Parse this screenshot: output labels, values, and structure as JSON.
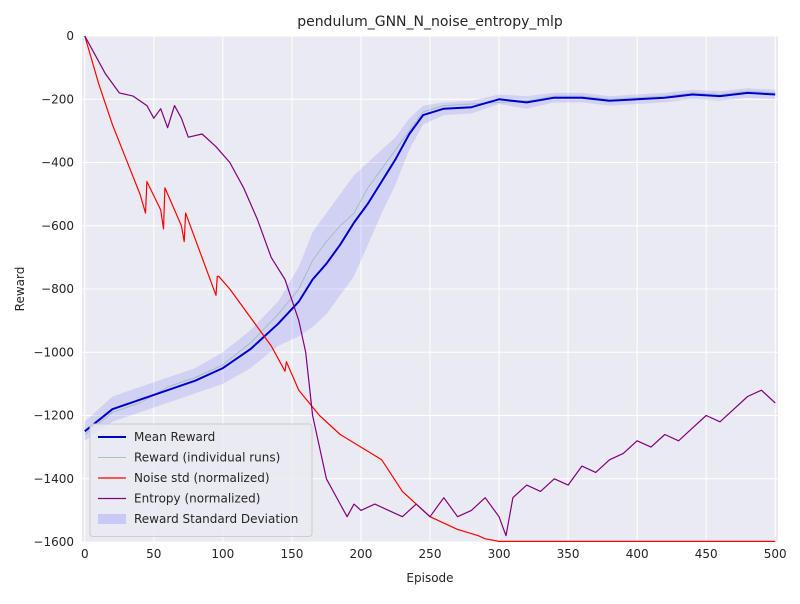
{
  "chart_data": {
    "type": "line",
    "title": "pendulum_GNN_N_noise_entropy_mlp",
    "xlabel": "Episode",
    "ylabel": "Reward",
    "xlim": [
      -2,
      502
    ],
    "ylim": [
      -1600,
      0
    ],
    "xticks": [
      0,
      50,
      100,
      150,
      200,
      250,
      300,
      350,
      400,
      450,
      500
    ],
    "yticks": [
      0,
      -200,
      -400,
      -600,
      -800,
      -1000,
      -1200,
      -1400,
      -1600
    ],
    "grid": true,
    "legend_position": "lower-left",
    "background": "#eaeaf2",
    "series": [
      {
        "name": "Mean Reward",
        "color": "#0000cc",
        "x": [
          0,
          20,
          40,
          60,
          80,
          100,
          120,
          140,
          155,
          165,
          175,
          185,
          195,
          205,
          215,
          225,
          235,
          245,
          260,
          280,
          300,
          320,
          340,
          360,
          380,
          400,
          420,
          440,
          460,
          480,
          500
        ],
        "y": [
          -1250,
          -1180,
          -1150,
          -1120,
          -1090,
          -1050,
          -990,
          -910,
          -840,
          -770,
          -720,
          -660,
          -590,
          -530,
          -460,
          -390,
          -310,
          -250,
          -230,
          -225,
          -200,
          -210,
          -195,
          -195,
          -205,
          -200,
          -195,
          -185,
          -190,
          -180,
          -185
        ]
      },
      {
        "name": "Reward (individual runs)",
        "color": "#5a9e5a",
        "opacity": 0.35,
        "x": [
          0,
          20,
          40,
          60,
          80,
          100,
          120,
          140,
          155,
          165,
          175,
          185,
          195,
          205,
          215,
          225,
          235,
          245,
          260,
          280,
          300,
          320,
          340,
          360,
          380,
          400,
          420,
          440,
          460,
          480,
          500
        ],
        "y": [
          -1260,
          -1190,
          -1160,
          -1110,
          -1080,
          -1040,
          -970,
          -880,
          -800,
          -710,
          -650,
          -600,
          -560,
          -480,
          -420,
          -360,
          -300,
          -240,
          -220,
          -215,
          -210,
          -205,
          -190,
          -190,
          -200,
          -195,
          -190,
          -180,
          -185,
          -175,
          -180
        ]
      },
      {
        "name": "Noise std (normalized)",
        "color": "#ff0000",
        "x": [
          0,
          10,
          20,
          30,
          40,
          44,
          45,
          55,
          57,
          58,
          70,
          72,
          73,
          95,
          96,
          97,
          105,
          115,
          125,
          135,
          145,
          146,
          155,
          170,
          185,
          200,
          215,
          230,
          250,
          270,
          285,
          290,
          300,
          350,
          400,
          450,
          500
        ],
        "y": [
          0,
          -150,
          -280,
          -390,
          -500,
          -560,
          -460,
          -550,
          -610,
          -480,
          -600,
          -650,
          -560,
          -820,
          -760,
          -760,
          -800,
          -860,
          -920,
          -980,
          -1060,
          -1030,
          -1120,
          -1200,
          -1260,
          -1300,
          -1340,
          -1440,
          -1520,
          -1560,
          -1580,
          -1590,
          -1598,
          -1598,
          -1598,
          -1598,
          -1598
        ]
      },
      {
        "name": "Entropy (normalized)",
        "color": "#800080",
        "x": [
          0,
          15,
          25,
          35,
          45,
          50,
          55,
          60,
          65,
          70,
          75,
          85,
          95,
          105,
          115,
          125,
          135,
          145,
          155,
          160,
          165,
          175,
          185,
          190,
          195,
          200,
          210,
          220,
          230,
          240,
          250,
          260,
          270,
          280,
          290,
          300,
          305,
          310,
          320,
          330,
          340,
          350,
          360,
          370,
          380,
          390,
          400,
          410,
          420,
          430,
          440,
          450,
          460,
          470,
          480,
          490,
          500
        ],
        "y": [
          0,
          -120,
          -180,
          -190,
          -220,
          -260,
          -230,
          -290,
          -220,
          -260,
          -320,
          -310,
          -350,
          -400,
          -480,
          -580,
          -700,
          -770,
          -900,
          -1000,
          -1200,
          -1400,
          -1480,
          -1520,
          -1480,
          -1500,
          -1480,
          -1500,
          -1520,
          -1480,
          -1520,
          -1460,
          -1520,
          -1500,
          -1460,
          -1520,
          -1580,
          -1460,
          -1420,
          -1440,
          -1400,
          -1420,
          -1360,
          -1380,
          -1340,
          -1320,
          -1280,
          -1300,
          -1260,
          -1280,
          -1240,
          -1200,
          -1220,
          -1180,
          -1140,
          -1120,
          -1160
        ]
      }
    ],
    "band": {
      "name": "Reward Standard Deviation",
      "color": "#6666ff",
      "opacity": 0.18,
      "x": [
        0,
        20,
        40,
        60,
        80,
        100,
        120,
        140,
        155,
        165,
        175,
        185,
        195,
        205,
        215,
        225,
        235,
        245,
        260,
        280,
        300,
        320,
        340,
        360,
        380,
        400,
        420,
        440,
        460,
        480,
        500
      ],
      "upper": [
        -1220,
        -1140,
        -1110,
        -1080,
        -1050,
        -1000,
        -930,
        -840,
        -730,
        -620,
        -560,
        -500,
        -440,
        -400,
        -360,
        -320,
        -260,
        -220,
        -210,
        -205,
        -185,
        -190,
        -180,
        -180,
        -190,
        -185,
        -180,
        -170,
        -175,
        -165,
        -170
      ],
      "lower": [
        -1280,
        -1220,
        -1190,
        -1160,
        -1130,
        -1100,
        -1050,
        -980,
        -950,
        -920,
        -880,
        -820,
        -760,
        -660,
        -560,
        -470,
        -360,
        -280,
        -250,
        -245,
        -215,
        -230,
        -210,
        -210,
        -220,
        -215,
        -210,
        -200,
        -205,
        -195,
        -200
      ]
    }
  }
}
